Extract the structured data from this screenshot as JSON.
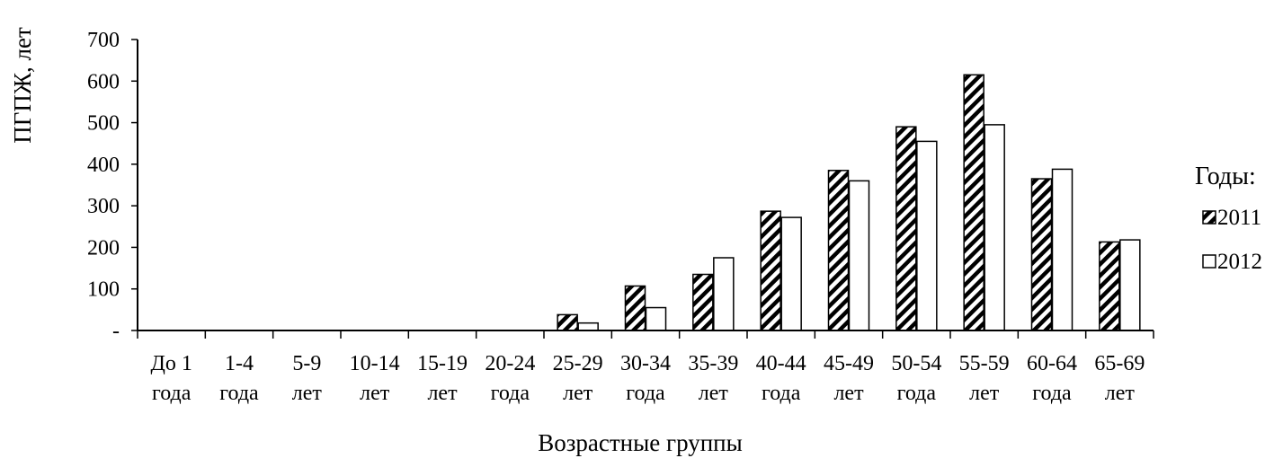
{
  "chart_data": {
    "type": "bar",
    "ylabel": "ПГПЖ, лет",
    "xlabel": "Возрастные группы",
    "ylim": [
      0,
      700
    ],
    "yticks": [
      "-",
      "100",
      "200",
      "300",
      "400",
      "500",
      "600",
      "700"
    ],
    "categories": [
      [
        "До 1",
        "года"
      ],
      [
        "1-4",
        "года"
      ],
      [
        "5-9",
        "лет"
      ],
      [
        "10-14",
        "лет"
      ],
      [
        "15-19",
        "лет"
      ],
      [
        "20-24",
        "года"
      ],
      [
        "25-29",
        "лет"
      ],
      [
        "30-34",
        "года"
      ],
      [
        "35-39",
        "лет"
      ],
      [
        "40-44",
        "года"
      ],
      [
        "45-49",
        "лет"
      ],
      [
        "50-54",
        "года"
      ],
      [
        "55-59",
        "лет"
      ],
      [
        "60-64",
        "года"
      ],
      [
        "65-69",
        "лет"
      ]
    ],
    "legend_title": "Годы:",
    "legend_position": "right",
    "grid": false,
    "series": [
      {
        "name": "2011",
        "pattern": "diagonal-hatch",
        "values": [
          0,
          0,
          0,
          0,
          0,
          0,
          38,
          107,
          135,
          287,
          385,
          490,
          615,
          365,
          213
        ]
      },
      {
        "name": "2012",
        "pattern": "white",
        "values": [
          0,
          0,
          0,
          0,
          0,
          0,
          18,
          55,
          175,
          272,
          360,
          455,
          495,
          388,
          218
        ]
      }
    ]
  }
}
